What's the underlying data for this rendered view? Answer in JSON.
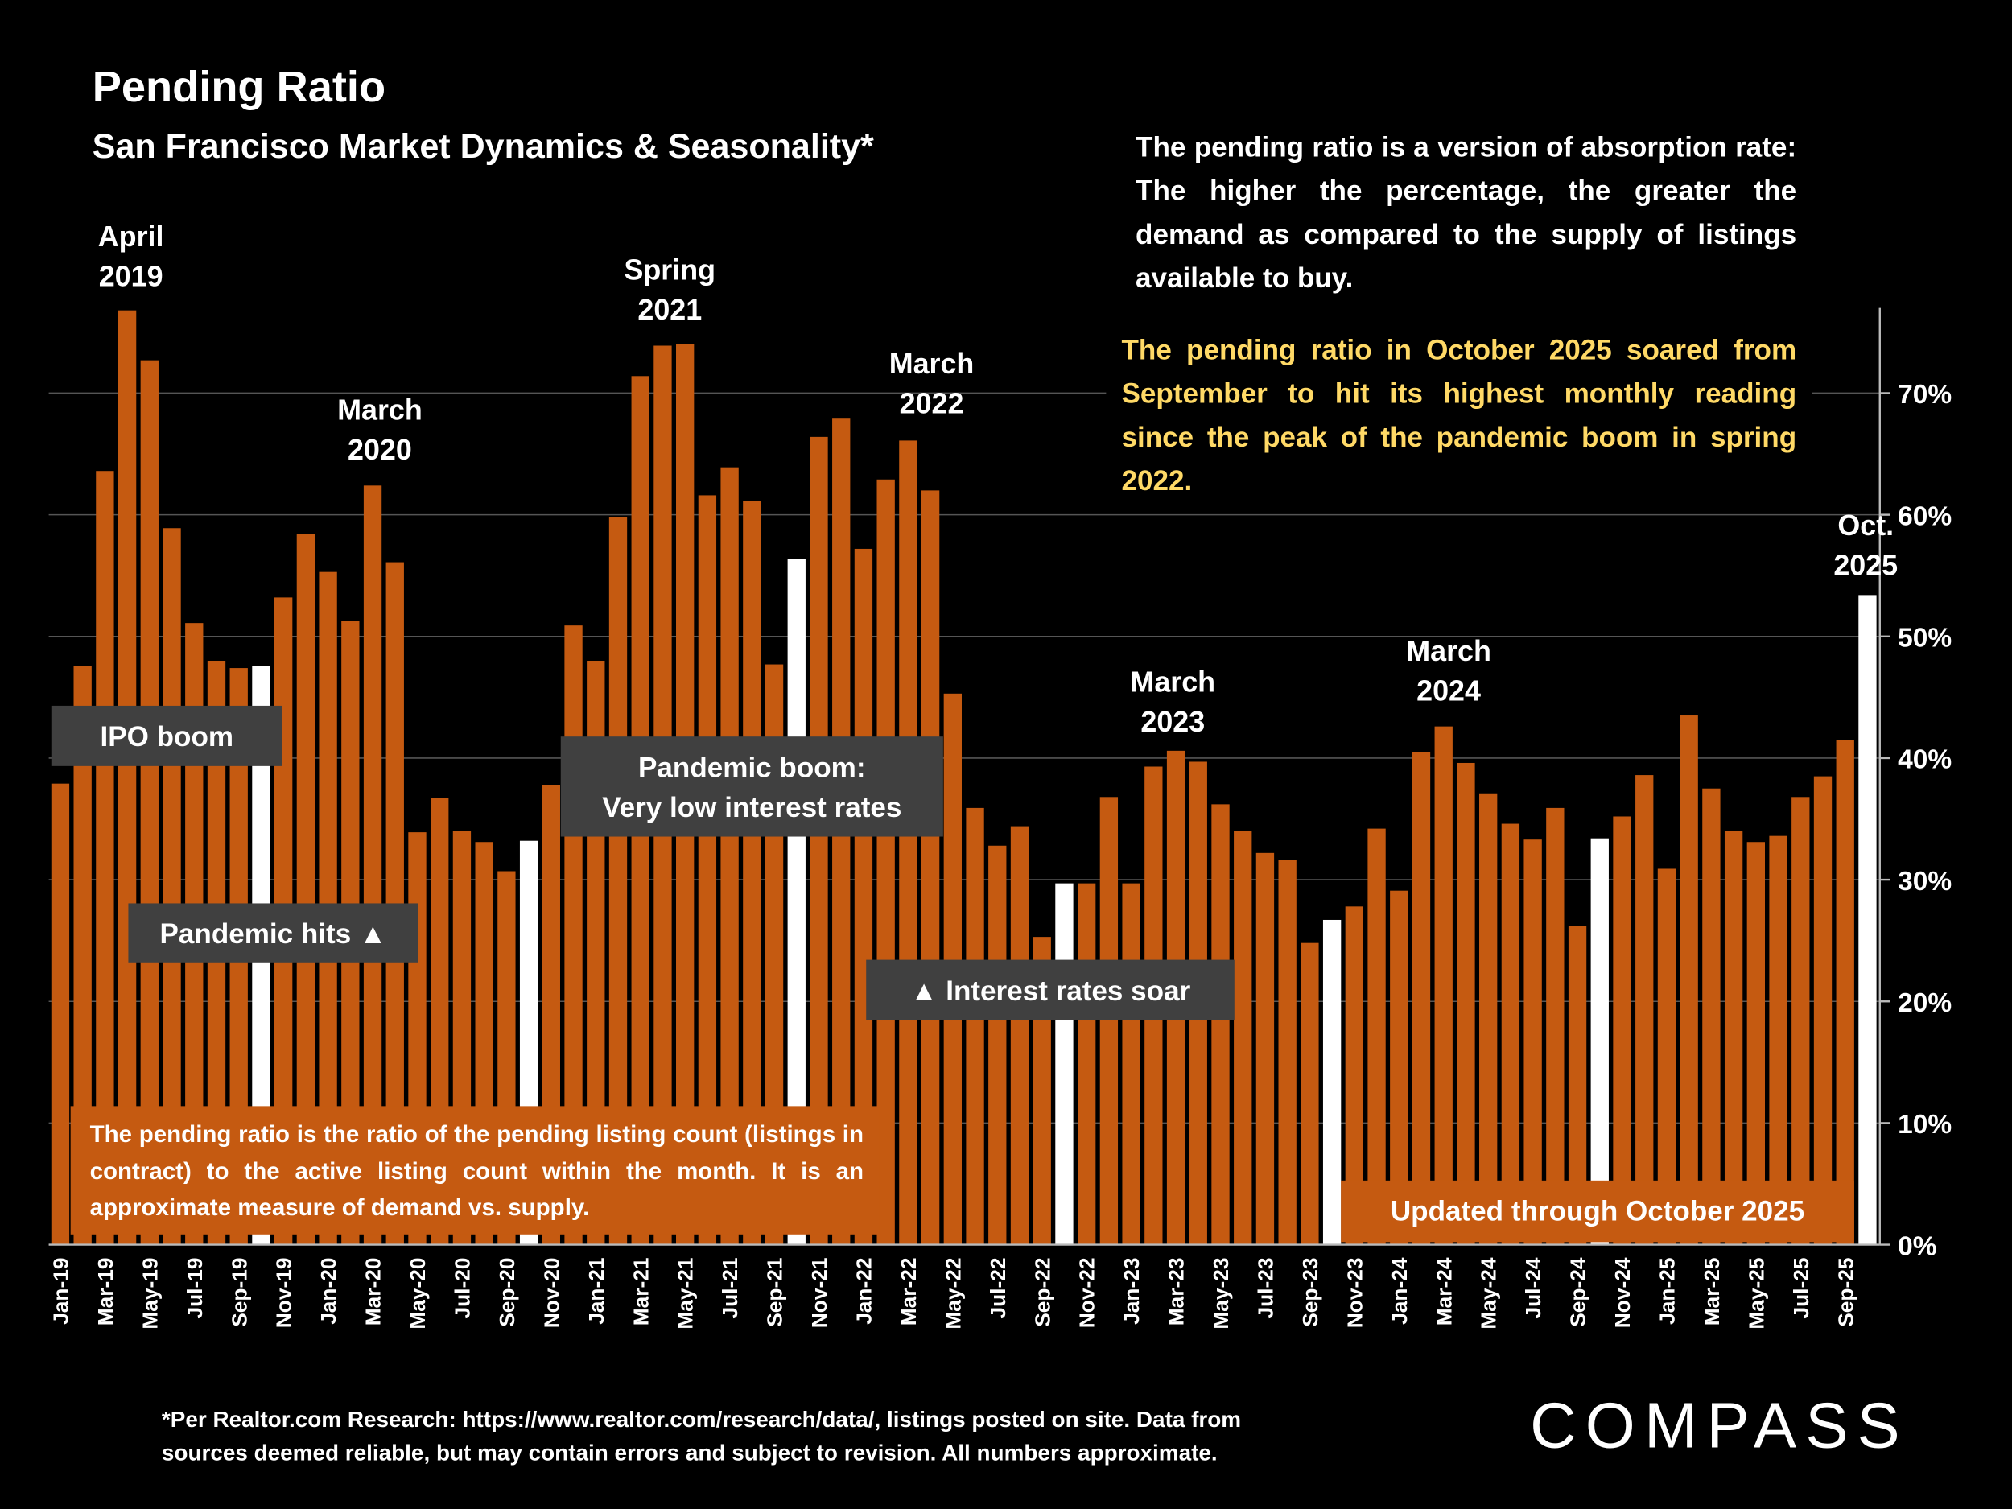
{
  "title": "Pending Ratio",
  "subtitle": "San Francisco Market Dynamics & Seasonality*",
  "description": "The pending ratio is a version of absorption rate:   The higher the percentage, the greater the demand as compared to the supply of listings available to buy.",
  "highlight_text": "The pending ratio in October 2025 soared from September to hit its highest monthly reading since the peak of the pandemic boom in spring 2022.",
  "definition_note": "The pending ratio is the ratio of the pending listing count (listings in contract) to the active listing count within the month. It is an approximate measure of demand vs. supply.",
  "updated_note": "Updated through October 2025",
  "footnote": [
    "*Per Realtor.com Research:  https://www.realtor.com/research/data/, listings posted on site. Data from",
    "sources deemed reliable, but may contain errors and subject to revision. All numbers approximate."
  ],
  "logo": "COMPASS",
  "chart_data": {
    "type": "bar",
    "categories": [
      "Jan-19",
      null,
      "Mar-19",
      null,
      "May-19",
      null,
      "Jul-19",
      null,
      "Sep-19",
      null,
      "Nov-19",
      null,
      "Jan-20",
      null,
      "Mar-20",
      null,
      "May-20",
      null,
      "Jul-20",
      null,
      "Sep-20",
      null,
      "Nov-20",
      null,
      "Jan-21",
      null,
      "Mar-21",
      null,
      "May-21",
      null,
      "Jul-21",
      null,
      "Sep-21",
      null,
      "Nov-21",
      null,
      "Jan-22",
      null,
      "Mar-22",
      null,
      "May-22",
      null,
      "Jul-22",
      null,
      "Sep-22",
      null,
      "Nov-22",
      null,
      "Jan-23",
      null,
      "Mar-23",
      null,
      "May-23",
      null,
      "Jul-23",
      null,
      "Sep-23",
      null,
      "Nov-23",
      null,
      "Jan-24",
      null,
      "Mar-24",
      null,
      "May-24",
      null,
      "Jul-24",
      null,
      "Sep-24",
      null,
      "Nov-24",
      null,
      "Jan-25",
      null,
      "Mar-25",
      null,
      "May-25",
      null,
      "Jul-25",
      null,
      "Sep-25",
      null
    ],
    "values": [
      37.9,
      47.6,
      63.6,
      76.8,
      72.7,
      58.9,
      51.1,
      48.0,
      47.4,
      47.6,
      53.2,
      58.4,
      55.3,
      51.3,
      62.4,
      56.1,
      33.9,
      36.7,
      34.0,
      33.1,
      30.7,
      33.2,
      37.8,
      50.9,
      48.0,
      59.8,
      71.4,
      73.9,
      74.0,
      61.6,
      63.9,
      61.1,
      47.7,
      56.4,
      66.4,
      67.9,
      57.2,
      62.9,
      66.1,
      62.0,
      45.3,
      35.9,
      32.8,
      34.4,
      25.3,
      29.7,
      29.7,
      36.8,
      29.7,
      39.3,
      40.6,
      39.7,
      36.2,
      34.0,
      32.2,
      31.6,
      24.8,
      26.7,
      27.8,
      34.2,
      29.1,
      40.5,
      42.6,
      39.6,
      37.1,
      34.6,
      33.3,
      35.9,
      26.2,
      33.4,
      35.2,
      38.6,
      30.9,
      43.5,
      37.5,
      34.0,
      33.1,
      33.6,
      36.8,
      38.5,
      41.5,
      53.4
    ],
    "colors": [
      "#C55A11",
      "#C55A11",
      "#C55A11",
      "#C55A11",
      "#C55A11",
      "#C55A11",
      "#C55A11",
      "#C55A11",
      "#C55A11",
      "#FFFFFF",
      "#C55A11",
      "#C55A11",
      "#C55A11",
      "#C55A11",
      "#C55A11",
      "#C55A11",
      "#C55A11",
      "#C55A11",
      "#C55A11",
      "#C55A11",
      "#C55A11",
      "#FFFFFF",
      "#C55A11",
      "#C55A11",
      "#C55A11",
      "#C55A11",
      "#C55A11",
      "#C55A11",
      "#C55A11",
      "#C55A11",
      "#C55A11",
      "#C55A11",
      "#C55A11",
      "#FFFFFF",
      "#C55A11",
      "#C55A11",
      "#C55A11",
      "#C55A11",
      "#C55A11",
      "#C55A11",
      "#C55A11",
      "#C55A11",
      "#C55A11",
      "#C55A11",
      "#C55A11",
      "#FFFFFF",
      "#C55A11",
      "#C55A11",
      "#C55A11",
      "#C55A11",
      "#C55A11",
      "#C55A11",
      "#C55A11",
      "#C55A11",
      "#C55A11",
      "#C55A11",
      "#C55A11",
      "#FFFFFF",
      "#C55A11",
      "#C55A11",
      "#C55A11",
      "#C55A11",
      "#C55A11",
      "#C55A11",
      "#C55A11",
      "#C55A11",
      "#C55A11",
      "#C55A11",
      "#C55A11",
      "#FFFFFF",
      "#C55A11",
      "#C55A11",
      "#C55A11",
      "#C55A11",
      "#C55A11",
      "#C55A11",
      "#C55A11",
      "#C55A11",
      "#C55A11",
      "#C55A11",
      "#C55A11",
      "#FFFFFF"
    ],
    "ylim": [
      0,
      77
    ],
    "yticks": [
      {
        "value": 0,
        "label": "0%"
      },
      {
        "value": 10,
        "label": "10%"
      },
      {
        "value": 20,
        "label": "20%"
      },
      {
        "value": 30,
        "label": "30%"
      },
      {
        "value": 40,
        "label": "40%"
      },
      {
        "value": 50,
        "label": "50%"
      },
      {
        "value": 60,
        "label": "60%"
      },
      {
        "value": 70,
        "label": "70%"
      }
    ],
    "grid": true,
    "peak_labels": [
      [
        "April",
        "2019"
      ],
      [
        "March",
        "2020"
      ],
      [
        "Spring",
        "2021"
      ],
      [
        "March",
        "2022"
      ],
      [
        "March",
        "2023"
      ],
      [
        "March",
        "2024"
      ],
      [
        "Oct.",
        "2025"
      ]
    ],
    "event_labels": [
      [
        "IPO boom"
      ],
      [
        "Pandemic hits ▲"
      ],
      [
        "Pandemic boom:",
        "Very low interest rates"
      ],
      [
        "▲ Interest rates soar"
      ]
    ]
  }
}
